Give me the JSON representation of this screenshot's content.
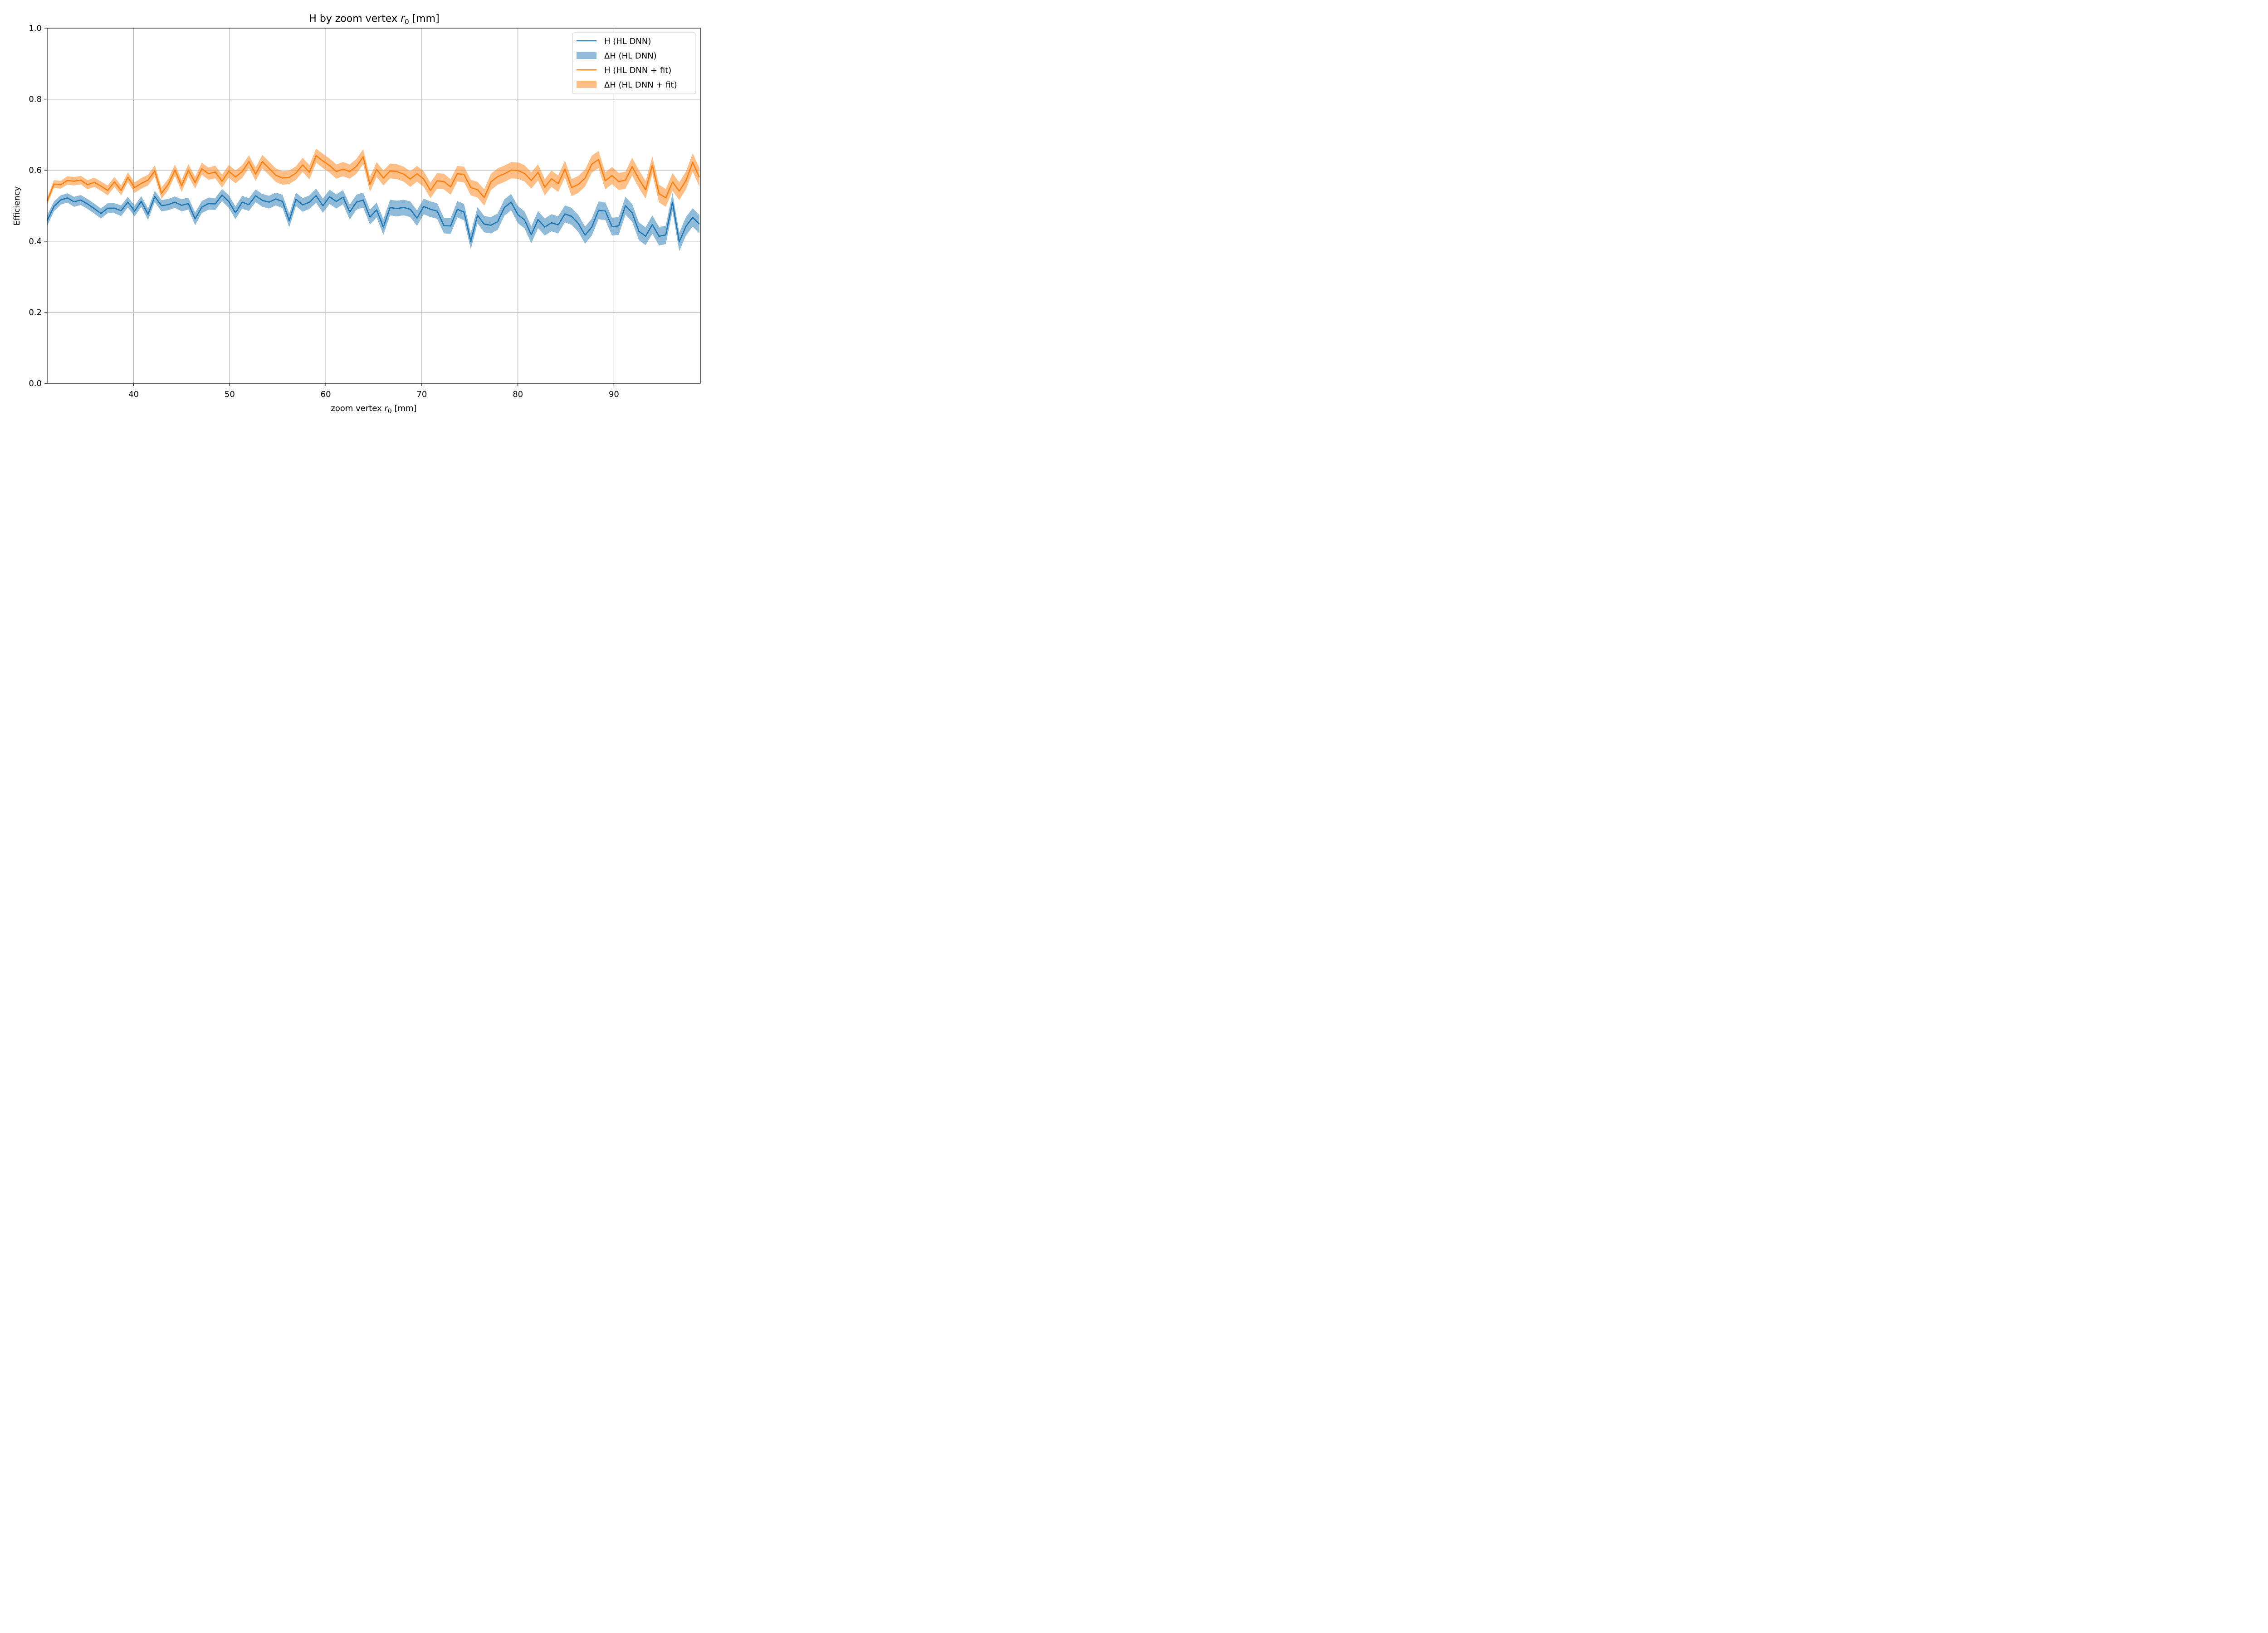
{
  "chart_data": {
    "type": "line",
    "title": "H by zoom vertex r₀ [mm]",
    "title_parts": [
      "H by zoom vertex ",
      "r",
      "0",
      " [mm]"
    ],
    "xlabel": "zoom vertex r₀ [mm]",
    "xlabel_parts": [
      "zoom vertex ",
      "r",
      "0",
      " [mm]"
    ],
    "ylabel": "Efficiency",
    "xlim": [
      31,
      99
    ],
    "ylim": [
      0,
      1
    ],
    "xticks": [
      40,
      50,
      60,
      70,
      80,
      90
    ],
    "xtick_labels": [
      "40",
      "50",
      "60",
      "70",
      "80",
      "90"
    ],
    "yticks": [
      0.0,
      0.2,
      0.4,
      0.6,
      0.8,
      1.0
    ],
    "ytick_labels": [
      "0.0",
      "0.2",
      "0.4",
      "0.6",
      "0.8",
      "1.0"
    ],
    "grid": true,
    "legend_position": "top-right",
    "x": [
      31.0,
      31.7,
      32.4,
      33.1,
      33.8,
      34.5,
      35.2,
      35.9,
      36.6,
      37.3,
      38.0,
      38.7,
      39.4,
      40.1,
      40.8,
      41.5,
      42.2,
      42.9,
      43.6,
      44.3,
      45.0,
      45.7,
      46.4,
      47.1,
      47.8,
      48.5,
      49.2,
      49.9,
      50.6,
      51.3,
      52.0,
      52.7,
      53.4,
      54.1,
      54.8,
      55.5,
      56.2,
      56.9,
      57.6,
      58.3,
      59.0,
      59.7,
      60.4,
      61.1,
      61.8,
      62.5,
      63.2,
      63.9,
      64.6,
      65.3,
      66.0,
      66.7,
      67.4,
      68.1,
      68.8,
      69.5,
      70.2,
      70.9,
      71.6,
      72.3,
      73.0,
      73.7,
      74.4,
      75.1,
      75.8,
      76.5,
      77.2,
      77.9,
      78.6,
      79.3,
      80.0,
      80.7,
      81.4,
      82.1,
      82.8,
      83.5,
      84.2,
      84.9,
      85.6,
      86.3,
      87.0,
      87.7,
      88.4,
      89.1,
      89.8,
      90.5,
      91.2,
      91.9,
      92.6,
      93.3,
      94.0,
      94.7,
      95.4,
      96.1,
      96.8,
      97.5,
      98.2,
      98.9
    ],
    "series": [
      {
        "name": "H (HL DNN)",
        "color": "#1f77b4",
        "values": [
          0.458,
          0.498,
          0.516,
          0.522,
          0.511,
          0.516,
          0.505,
          0.492,
          0.478,
          0.493,
          0.493,
          0.486,
          0.51,
          0.485,
          0.512,
          0.476,
          0.526,
          0.5,
          0.503,
          0.51,
          0.501,
          0.506,
          0.463,
          0.496,
          0.506,
          0.505,
          0.53,
          0.512,
          0.48,
          0.51,
          0.503,
          0.528,
          0.515,
          0.51,
          0.519,
          0.512,
          0.458,
          0.518,
          0.502,
          0.51,
          0.528,
          0.5,
          0.525,
          0.512,
          0.524,
          0.482,
          0.51,
          0.516,
          0.468,
          0.488,
          0.44,
          0.495,
          0.492,
          0.495,
          0.49,
          0.465,
          0.498,
          0.49,
          0.485,
          0.444,
          0.443,
          0.49,
          0.482,
          0.4,
          0.473,
          0.448,
          0.445,
          0.455,
          0.495,
          0.51,
          0.475,
          0.46,
          0.418,
          0.461,
          0.44,
          0.452,
          0.446,
          0.477,
          0.47,
          0.45,
          0.417,
          0.44,
          0.487,
          0.485,
          0.441,
          0.443,
          0.5,
          0.48,
          0.428,
          0.414,
          0.447,
          0.414,
          0.418,
          0.51,
          0.398,
          0.442,
          0.467,
          0.448
        ],
        "band_halfwidth": [
          0.015,
          0.014,
          0.013,
          0.013,
          0.014,
          0.014,
          0.014,
          0.014,
          0.014,
          0.014,
          0.014,
          0.015,
          0.015,
          0.015,
          0.015,
          0.016,
          0.016,
          0.016,
          0.016,
          0.016,
          0.017,
          0.017,
          0.018,
          0.017,
          0.017,
          0.017,
          0.017,
          0.018,
          0.018,
          0.018,
          0.018,
          0.018,
          0.018,
          0.018,
          0.018,
          0.019,
          0.019,
          0.019,
          0.019,
          0.019,
          0.02,
          0.02,
          0.02,
          0.02,
          0.02,
          0.021,
          0.021,
          0.021,
          0.021,
          0.021,
          0.022,
          0.022,
          0.022,
          0.022,
          0.022,
          0.022,
          0.022,
          0.022,
          0.022,
          0.022,
          0.022,
          0.023,
          0.023,
          0.023,
          0.023,
          0.023,
          0.023,
          0.023,
          0.023,
          0.023,
          0.024,
          0.024,
          0.024,
          0.024,
          0.024,
          0.024,
          0.024,
          0.024,
          0.024,
          0.024,
          0.024,
          0.024,
          0.025,
          0.025,
          0.025,
          0.025,
          0.025,
          0.025,
          0.025,
          0.025,
          0.026,
          0.026,
          0.026,
          0.026,
          0.026,
          0.026,
          0.026,
          0.026
        ]
      },
      {
        "name": "H (HL DNN + fit)",
        "color": "#ff7f0e",
        "values": [
          0.513,
          0.561,
          0.559,
          0.571,
          0.569,
          0.572,
          0.559,
          0.566,
          0.555,
          0.543,
          0.567,
          0.543,
          0.58,
          0.551,
          0.563,
          0.572,
          0.598,
          0.535,
          0.56,
          0.6,
          0.556,
          0.6,
          0.565,
          0.604,
          0.59,
          0.595,
          0.569,
          0.597,
          0.581,
          0.596,
          0.624,
          0.589,
          0.624,
          0.605,
          0.586,
          0.578,
          0.58,
          0.592,
          0.615,
          0.594,
          0.641,
          0.626,
          0.613,
          0.596,
          0.603,
          0.596,
          0.611,
          0.638,
          0.56,
          0.602,
          0.578,
          0.598,
          0.596,
          0.589,
          0.575,
          0.59,
          0.575,
          0.543,
          0.57,
          0.568,
          0.553,
          0.59,
          0.588,
          0.551,
          0.545,
          0.523,
          0.567,
          0.582,
          0.59,
          0.6,
          0.599,
          0.591,
          0.571,
          0.594,
          0.552,
          0.576,
          0.562,
          0.603,
          0.551,
          0.56,
          0.578,
          0.617,
          0.63,
          0.57,
          0.585,
          0.568,
          0.572,
          0.61,
          0.575,
          0.545,
          0.614,
          0.534,
          0.522,
          0.567,
          0.541,
          0.571,
          0.622,
          0.58
        ],
        "band_halfwidth": [
          0.01,
          0.011,
          0.011,
          0.012,
          0.012,
          0.012,
          0.013,
          0.013,
          0.013,
          0.014,
          0.014,
          0.014,
          0.014,
          0.015,
          0.015,
          0.015,
          0.016,
          0.016,
          0.016,
          0.016,
          0.017,
          0.017,
          0.017,
          0.017,
          0.017,
          0.018,
          0.018,
          0.018,
          0.018,
          0.018,
          0.018,
          0.019,
          0.019,
          0.019,
          0.019,
          0.019,
          0.019,
          0.019,
          0.02,
          0.02,
          0.02,
          0.02,
          0.02,
          0.02,
          0.02,
          0.02,
          0.021,
          0.021,
          0.021,
          0.021,
          0.021,
          0.021,
          0.021,
          0.021,
          0.022,
          0.022,
          0.022,
          0.022,
          0.022,
          0.022,
          0.022,
          0.022,
          0.022,
          0.022,
          0.022,
          0.023,
          0.023,
          0.023,
          0.023,
          0.023,
          0.023,
          0.023,
          0.023,
          0.023,
          0.023,
          0.023,
          0.023,
          0.024,
          0.024,
          0.024,
          0.024,
          0.024,
          0.024,
          0.024,
          0.024,
          0.024,
          0.024,
          0.025,
          0.025,
          0.025,
          0.025,
          0.025,
          0.025,
          0.025,
          0.025,
          0.025,
          0.026,
          0.026
        ]
      }
    ],
    "legend": [
      {
        "label": "H (HL DNN)",
        "kind": "line",
        "color": "#1f77b4"
      },
      {
        "label": "ΔH (HL DNN)",
        "kind": "band",
        "color": "#1f77b4"
      },
      {
        "label": "H (HL DNN + fit)",
        "kind": "line",
        "color": "#ff7f0e"
      },
      {
        "label": "ΔH (HL DNN + fit)",
        "kind": "band",
        "color": "#ff7f0e"
      }
    ]
  }
}
